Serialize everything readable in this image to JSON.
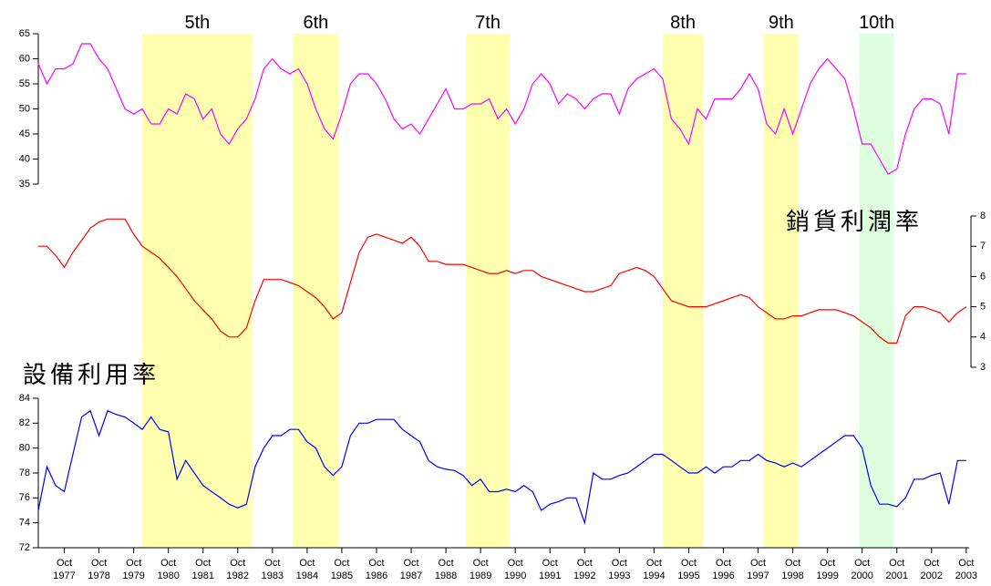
{
  "chart_data": {
    "type": "line",
    "x": [
      "1977-01",
      "1977-04",
      "1977-07",
      "1977-10",
      "1978-01",
      "1978-04",
      "1978-07",
      "1978-10",
      "1979-01",
      "1979-04",
      "1979-07",
      "1979-10",
      "1980-01",
      "1980-04",
      "1980-07",
      "1980-10",
      "1981-01",
      "1981-04",
      "1981-07",
      "1981-10",
      "1982-01",
      "1982-04",
      "1982-07",
      "1982-10",
      "1983-01",
      "1983-04",
      "1983-07",
      "1983-10",
      "1984-01",
      "1984-04",
      "1984-07",
      "1984-10",
      "1985-01",
      "1985-04",
      "1985-07",
      "1985-10",
      "1986-01",
      "1986-04",
      "1986-07",
      "1986-10",
      "1987-01",
      "1987-04",
      "1987-07",
      "1987-10",
      "1988-01",
      "1988-04",
      "1988-07",
      "1988-10",
      "1989-01",
      "1989-04",
      "1989-07",
      "1989-10",
      "1990-01",
      "1990-04",
      "1990-07",
      "1990-10",
      "1991-01",
      "1991-04",
      "1991-07",
      "1991-10",
      "1992-01",
      "1992-04",
      "1992-07",
      "1992-10",
      "1993-01",
      "1993-04",
      "1993-07",
      "1993-10",
      "1994-01",
      "1994-04",
      "1994-07",
      "1994-10",
      "1995-01",
      "1995-04",
      "1995-07",
      "1995-10",
      "1996-01",
      "1996-04",
      "1996-07",
      "1996-10",
      "1997-01",
      "1997-04",
      "1997-07",
      "1997-10",
      "1998-01",
      "1998-04",
      "1998-07",
      "1998-10",
      "1999-01",
      "1999-04",
      "1999-07",
      "1999-10",
      "2000-01",
      "2000-04",
      "2000-07",
      "2000-10",
      "2001-01",
      "2001-04",
      "2001-07",
      "2001-10",
      "2002-01",
      "2002-04",
      "2002-07",
      "2002-10",
      "2003-01",
      "2003-04",
      "2003-07",
      "2003-10"
    ],
    "xlim": [
      "1977-01",
      "2003-11"
    ],
    "xticks": [
      {
        "value": "1977-10",
        "label": "Oct 1977"
      },
      {
        "value": "1978-10",
        "label": "Oct 1978"
      },
      {
        "value": "1979-10",
        "label": "Oct 1979"
      },
      {
        "value": "1980-10",
        "label": "Oct 1980"
      },
      {
        "value": "1981-10",
        "label": "Oct 1981"
      },
      {
        "value": "1982-10",
        "label": "Oct 1982"
      },
      {
        "value": "1983-10",
        "label": "Oct 1983"
      },
      {
        "value": "1984-10",
        "label": "Oct 1984"
      },
      {
        "value": "1985-10",
        "label": "Oct 1985"
      },
      {
        "value": "1986-10",
        "label": "Oct 1986"
      },
      {
        "value": "1987-10",
        "label": "Oct 1987"
      },
      {
        "value": "1988-10",
        "label": "Oct 1988"
      },
      {
        "value": "1989-10",
        "label": "Oct 1989"
      },
      {
        "value": "1990-10",
        "label": "Oct 1990"
      },
      {
        "value": "1991-10",
        "label": "Oct 1991"
      },
      {
        "value": "1992-10",
        "label": "Oct 1992"
      },
      {
        "value": "1993-10",
        "label": "Oct 1993"
      },
      {
        "value": "1994-10",
        "label": "Oct 1994"
      },
      {
        "value": "1995-10",
        "label": "Oct 1995"
      },
      {
        "value": "1996-10",
        "label": "Oct 1996"
      },
      {
        "value": "1997-10",
        "label": "Oct 1997"
      },
      {
        "value": "1998-10",
        "label": "Oct 1998"
      },
      {
        "value": "1999-10",
        "label": "Oct 1999"
      },
      {
        "value": "2000-10",
        "label": "Oct 2000"
      },
      {
        "value": "2001-10",
        "label": "Oct 2001"
      },
      {
        "value": "2002-10",
        "label": "Oct 2002"
      },
      {
        "value": "2003-10",
        "label": "Oct 2003"
      }
    ],
    "shaded": [
      {
        "label": "5th",
        "start": "1980-01",
        "end": "1983-03",
        "color": "#ffffb0"
      },
      {
        "label": "6th",
        "start": "1984-05",
        "end": "1985-09",
        "color": "#ffffb0"
      },
      {
        "label": "7th",
        "start": "1989-05",
        "end": "1990-08",
        "color": "#ffffb0"
      },
      {
        "label": "8th",
        "start": "1995-01",
        "end": "1996-03",
        "color": "#ffffb0"
      },
      {
        "label": "9th",
        "start": "1997-12",
        "end": "1998-12",
        "color": "#ffffb0"
      },
      {
        "label": "10th",
        "start": "2000-09",
        "end": "2001-09",
        "color": "#ddffdd"
      }
    ],
    "panels": [
      {
        "axis": "left",
        "ylim": [
          35,
          65
        ],
        "yticks": [
          35,
          40,
          45,
          50,
          55,
          60,
          65
        ],
        "series": [
          {
            "color": "#ff00ff",
            "values": [
              59,
              55,
              58,
              58,
              59,
              63,
              63,
              60,
              58,
              54,
              50,
              49,
              50,
              47,
              47,
              50,
              49,
              53,
              52,
              48,
              50,
              45,
              43,
              46,
              48,
              52,
              58,
              60,
              58,
              57,
              58,
              55,
              50,
              46,
              44,
              49,
              55,
              57,
              57,
              55,
              52,
              48,
              46,
              47,
              45,
              48,
              51,
              54,
              50,
              50,
              51,
              51,
              52,
              48,
              50,
              47,
              50,
              55,
              57,
              55,
              51,
              53,
              52,
              50,
              52,
              53,
              53,
              49,
              54,
              56,
              57,
              58,
              56,
              48,
              46,
              43,
              50,
              48,
              52,
              52,
              52,
              54,
              57,
              54,
              47,
              45,
              50,
              45,
              50,
              55,
              58,
              60,
              58,
              56,
              50,
              43,
              43,
              40,
              37,
              38,
              45,
              50,
              52,
              52,
              51,
              45,
              57,
              57
            ]
          }
        ]
      },
      {
        "axis": "right",
        "ylim": [
          3,
          8
        ],
        "yticks": [
          3,
          4,
          5,
          6,
          7,
          8
        ],
        "series": [
          {
            "name": "銷貨利潤率",
            "color": "#ff0000",
            "values": [
              7.0,
              7.0,
              6.7,
              6.3,
              6.8,
              7.2,
              7.6,
              7.8,
              7.9,
              7.9,
              7.9,
              7.4,
              7.0,
              6.8,
              6.6,
              6.3,
              6.0,
              5.6,
              5.2,
              4.9,
              4.6,
              4.2,
              4.0,
              4.0,
              4.3,
              5.2,
              5.9,
              5.9,
              5.9,
              5.8,
              5.7,
              5.5,
              5.3,
              5.0,
              4.6,
              4.8,
              5.8,
              6.8,
              7.3,
              7.4,
              7.3,
              7.2,
              7.1,
              7.3,
              7.0,
              6.5,
              6.5,
              6.4,
              6.4,
              6.4,
              6.3,
              6.2,
              6.1,
              6.1,
              6.2,
              6.1,
              6.2,
              6.2,
              6.0,
              5.9,
              5.8,
              5.7,
              5.6,
              5.5,
              5.5,
              5.6,
              5.7,
              6.1,
              6.2,
              6.3,
              6.2,
              6.0,
              5.6,
              5.2,
              5.1,
              5.0,
              5.0,
              5.0,
              5.1,
              5.2,
              5.3,
              5.4,
              5.3,
              5.0,
              4.8,
              4.6,
              4.6,
              4.7,
              4.7,
              4.8,
              4.9,
              4.9,
              4.9,
              4.8,
              4.7,
              4.5,
              4.3,
              4.0,
              3.8,
              3.8,
              4.7,
              5.0,
              5.0,
              4.9,
              4.8,
              4.5,
              4.8,
              5.0
            ]
          }
        ]
      },
      {
        "axis": "left",
        "ylim": [
          72,
          84
        ],
        "yticks": [
          72,
          74,
          76,
          78,
          80,
          82,
          84
        ],
        "series": [
          {
            "name": "設備利用率",
            "color": "#0000ff",
            "values": [
              75,
              78.5,
              77,
              76.5,
              79.5,
              82.5,
              83,
              81,
              83,
              82.7,
              82.5,
              82,
              81.5,
              82.5,
              81.5,
              81.3,
              77.5,
              79,
              78,
              77,
              76.5,
              76,
              75.5,
              75.2,
              75.5,
              78.5,
              80,
              81,
              81,
              81.5,
              81.5,
              80.5,
              80,
              78.5,
              77.8,
              78.5,
              81,
              82,
              82,
              82.3,
              82.3,
              82.3,
              81.5,
              81,
              80.5,
              79,
              78.5,
              78.3,
              78.2,
              77.8,
              77,
              77.5,
              76.5,
              76.5,
              76.7,
              76.5,
              77,
              76.5,
              75,
              75.5,
              75.7,
              76,
              76,
              74,
              78,
              77.5,
              77.5,
              77.8,
              78,
              78.5,
              79,
              79.5,
              79.5,
              79,
              78.5,
              78,
              78,
              78.5,
              78,
              78.5,
              78.5,
              79,
              79,
              79.5,
              79,
              78.8,
              78.5,
              78.8,
              78.5,
              79,
              79.5,
              80,
              80.5,
              81,
              81,
              80,
              77,
              75.5,
              75.5,
              75.3,
              76,
              77.5,
              77.5,
              77.8,
              78,
              75.5,
              79,
              79
            ]
          }
        ]
      }
    ]
  }
}
